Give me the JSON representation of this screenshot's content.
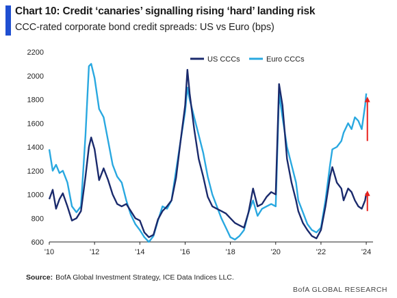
{
  "header": {
    "title": "Chart 10: Credit ‘canaries’ signalling rising ‘hard’ landing risk",
    "subtitle": "CCC-rated corporate bond credit spreads: US vs Euro (bps)"
  },
  "footer": {
    "source_label": "Source:",
    "source_text": "BofA Global Investment Strategy, ICE Data Indices LLC.",
    "brand": "BofA GLOBAL RESEARCH"
  },
  "colors": {
    "accent_bar": "#1f4fd1",
    "us_series": "#1a2a6c",
    "euro_series": "#29a8e0",
    "arrow": "#e8201c"
  },
  "chart_data": {
    "type": "line",
    "title": "Chart 10: Credit ‘canaries’ signalling rising ‘hard’ landing risk",
    "subtitle": "CCC-rated corporate bond credit spreads: US vs Euro (bps)",
    "xlabel": "",
    "ylabel": "",
    "xlim": [
      2010,
      2024.3
    ],
    "ylim": [
      600,
      2200
    ],
    "x_ticks": [
      {
        "value": 2010,
        "label": "'10"
      },
      {
        "value": 2012,
        "label": "'12"
      },
      {
        "value": 2014,
        "label": "'14"
      },
      {
        "value": 2016,
        "label": "'16"
      },
      {
        "value": 2018,
        "label": "'18"
      },
      {
        "value": 2020,
        "label": "'20"
      },
      {
        "value": 2022,
        "label": "'22"
      },
      {
        "value": 2024,
        "label": "'24"
      }
    ],
    "y_ticks": [
      600,
      800,
      1000,
      1200,
      1400,
      1600,
      1800,
      2000,
      2200
    ],
    "grid": false,
    "legend_position": "top-center",
    "series": [
      {
        "name": "US CCCs",
        "color": "#1a2a6c",
        "points": [
          [
            2010.0,
            960
          ],
          [
            2010.15,
            1040
          ],
          [
            2010.3,
            880
          ],
          [
            2010.45,
            960
          ],
          [
            2010.6,
            1010
          ],
          [
            2010.8,
            900
          ],
          [
            2011.0,
            780
          ],
          [
            2011.2,
            800
          ],
          [
            2011.4,
            860
          ],
          [
            2011.6,
            1150
          ],
          [
            2011.75,
            1400
          ],
          [
            2011.85,
            1480
          ],
          [
            2012.0,
            1380
          ],
          [
            2012.2,
            1120
          ],
          [
            2012.4,
            1220
          ],
          [
            2012.6,
            1120
          ],
          [
            2012.8,
            1000
          ],
          [
            2013.0,
            920
          ],
          [
            2013.2,
            900
          ],
          [
            2013.4,
            920
          ],
          [
            2013.6,
            860
          ],
          [
            2013.8,
            800
          ],
          [
            2014.0,
            780
          ],
          [
            2014.2,
            680
          ],
          [
            2014.4,
            640
          ],
          [
            2014.6,
            660
          ],
          [
            2014.8,
            790
          ],
          [
            2015.0,
            860
          ],
          [
            2015.2,
            900
          ],
          [
            2015.4,
            950
          ],
          [
            2015.6,
            1140
          ],
          [
            2015.8,
            1450
          ],
          [
            2016.0,
            1750
          ],
          [
            2016.1,
            2050
          ],
          [
            2016.2,
            1850
          ],
          [
            2016.4,
            1550
          ],
          [
            2016.6,
            1300
          ],
          [
            2016.8,
            1150
          ],
          [
            2017.0,
            980
          ],
          [
            2017.2,
            900
          ],
          [
            2017.4,
            880
          ],
          [
            2017.6,
            860
          ],
          [
            2017.8,
            840
          ],
          [
            2018.0,
            800
          ],
          [
            2018.2,
            760
          ],
          [
            2018.4,
            740
          ],
          [
            2018.6,
            720
          ],
          [
            2018.8,
            850
          ],
          [
            2019.0,
            1050
          ],
          [
            2019.2,
            900
          ],
          [
            2019.4,
            920
          ],
          [
            2019.6,
            980
          ],
          [
            2019.8,
            1020
          ],
          [
            2020.0,
            1000
          ],
          [
            2020.15,
            1930
          ],
          [
            2020.3,
            1750
          ],
          [
            2020.5,
            1300
          ],
          [
            2020.7,
            1100
          ],
          [
            2020.9,
            950
          ],
          [
            2021.0,
            860
          ],
          [
            2021.2,
            760
          ],
          [
            2021.4,
            700
          ],
          [
            2021.6,
            650
          ],
          [
            2021.8,
            630
          ],
          [
            2022.0,
            700
          ],
          [
            2022.2,
            900
          ],
          [
            2022.4,
            1150
          ],
          [
            2022.5,
            1230
          ],
          [
            2022.7,
            1100
          ],
          [
            2022.9,
            1050
          ],
          [
            2023.0,
            950
          ],
          [
            2023.2,
            1050
          ],
          [
            2023.35,
            1020
          ],
          [
            2023.5,
            950
          ],
          [
            2023.65,
            900
          ],
          [
            2023.8,
            880
          ],
          [
            2023.95,
            950
          ],
          [
            2024.0,
            1010
          ]
        ]
      },
      {
        "name": "Euro CCCs",
        "color": "#29a8e0",
        "points": [
          [
            2010.0,
            1380
          ],
          [
            2010.15,
            1200
          ],
          [
            2010.3,
            1250
          ],
          [
            2010.45,
            1180
          ],
          [
            2010.6,
            1200
          ],
          [
            2010.8,
            1100
          ],
          [
            2011.0,
            900
          ],
          [
            2011.2,
            850
          ],
          [
            2011.4,
            900
          ],
          [
            2011.6,
            1500
          ],
          [
            2011.75,
            2080
          ],
          [
            2011.85,
            2100
          ],
          [
            2012.0,
            1980
          ],
          [
            2012.2,
            1720
          ],
          [
            2012.4,
            1650
          ],
          [
            2012.6,
            1450
          ],
          [
            2012.8,
            1250
          ],
          [
            2013.0,
            1150
          ],
          [
            2013.2,
            1100
          ],
          [
            2013.4,
            950
          ],
          [
            2013.6,
            830
          ],
          [
            2013.8,
            750
          ],
          [
            2014.0,
            700
          ],
          [
            2014.2,
            640
          ],
          [
            2014.4,
            600
          ],
          [
            2014.6,
            650
          ],
          [
            2014.8,
            780
          ],
          [
            2015.0,
            900
          ],
          [
            2015.2,
            880
          ],
          [
            2015.4,
            950
          ],
          [
            2015.6,
            1200
          ],
          [
            2015.8,
            1450
          ],
          [
            2016.0,
            1700
          ],
          [
            2016.1,
            1900
          ],
          [
            2016.2,
            1800
          ],
          [
            2016.4,
            1650
          ],
          [
            2016.6,
            1500
          ],
          [
            2016.8,
            1350
          ],
          [
            2017.0,
            1150
          ],
          [
            2017.2,
            1000
          ],
          [
            2017.4,
            900
          ],
          [
            2017.6,
            800
          ],
          [
            2017.8,
            720
          ],
          [
            2018.0,
            640
          ],
          [
            2018.2,
            620
          ],
          [
            2018.4,
            650
          ],
          [
            2018.6,
            700
          ],
          [
            2018.8,
            850
          ],
          [
            2019.0,
            950
          ],
          [
            2019.2,
            820
          ],
          [
            2019.4,
            880
          ],
          [
            2019.6,
            900
          ],
          [
            2019.8,
            920
          ],
          [
            2020.0,
            900
          ],
          [
            2020.15,
            1850
          ],
          [
            2020.3,
            1650
          ],
          [
            2020.5,
            1400
          ],
          [
            2020.7,
            1250
          ],
          [
            2020.9,
            1100
          ],
          [
            2021.0,
            950
          ],
          [
            2021.2,
            850
          ],
          [
            2021.4,
            750
          ],
          [
            2021.6,
            700
          ],
          [
            2021.8,
            680
          ],
          [
            2022.0,
            720
          ],
          [
            2022.2,
            950
          ],
          [
            2022.4,
            1250
          ],
          [
            2022.5,
            1380
          ],
          [
            2022.7,
            1400
          ],
          [
            2022.9,
            1450
          ],
          [
            2023.0,
            1520
          ],
          [
            2023.2,
            1600
          ],
          [
            2023.35,
            1550
          ],
          [
            2023.5,
            1650
          ],
          [
            2023.65,
            1620
          ],
          [
            2023.8,
            1550
          ],
          [
            2023.95,
            1750
          ],
          [
            2024.0,
            1850
          ]
        ]
      }
    ],
    "annotations": [
      {
        "type": "arrow",
        "color": "#e8201c",
        "from": [
          2024.05,
          1450
        ],
        "to": [
          2024.05,
          1800
        ],
        "label": ""
      },
      {
        "type": "arrow",
        "color": "#e8201c",
        "from": [
          2024.05,
          860
        ],
        "to": [
          2024.05,
          1010
        ],
        "label": ""
      }
    ]
  }
}
